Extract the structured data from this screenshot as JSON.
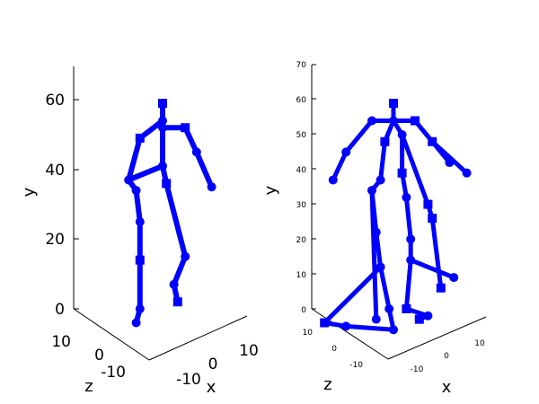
{
  "chart_data": [
    {
      "type": "3d-line",
      "title": "",
      "xlabel": "x",
      "ylabel": "y",
      "zlabel": "z",
      "series_color": "#0000ff",
      "y_ticks": [
        "0",
        "20",
        "40",
        "60"
      ],
      "x_ticks": [
        "-10",
        "0",
        "10"
      ],
      "z_ticks": [
        "-10",
        "0",
        "10"
      ],
      "joints": [
        {
          "name": "head",
          "x": 0,
          "y": 59,
          "z": 0
        },
        {
          "name": "neck",
          "x": 0,
          "y": 54,
          "z": 0
        },
        {
          "name": "chest",
          "x": 0,
          "y": 52,
          "z": 0
        },
        {
          "name": "r-shoulder",
          "x": 6,
          "y": 52,
          "z": 0
        },
        {
          "name": "r-elbow",
          "x": 9,
          "y": 45,
          "z": 0
        },
        {
          "name": "r-hand",
          "x": 13,
          "y": 35,
          "z": 0
        },
        {
          "name": "l-shoulder",
          "x": -6,
          "y": 49,
          "z": 0
        },
        {
          "name": "l-elbow",
          "x": -9,
          "y": 37,
          "z": 0
        },
        {
          "name": "pelvis",
          "x": 0,
          "y": 41,
          "z": 0
        },
        {
          "name": "r-hip",
          "x": 1,
          "y": 36,
          "z": 0
        },
        {
          "name": "r-knee",
          "x": 6,
          "y": 15,
          "z": 0
        },
        {
          "name": "r-ankle",
          "x": 3,
          "y": 7,
          "z": 0
        },
        {
          "name": "r-foot",
          "x": 4,
          "y": 2,
          "z": 0
        },
        {
          "name": "l-hip",
          "x": -7,
          "y": 34,
          "z": 0
        },
        {
          "name": "l-thigh",
          "x": -6,
          "y": 25,
          "z": 0
        },
        {
          "name": "l-knee",
          "x": -6,
          "y": 14,
          "z": 0
        },
        {
          "name": "l-ankle",
          "x": -6,
          "y": 0,
          "z": 0
        },
        {
          "name": "l-foot",
          "x": -7,
          "y": -4,
          "z": 0
        }
      ],
      "bones": [
        [
          "head",
          "neck"
        ],
        [
          "neck",
          "chest"
        ],
        [
          "chest",
          "r-shoulder"
        ],
        [
          "r-shoulder",
          "r-elbow"
        ],
        [
          "r-elbow",
          "r-hand"
        ],
        [
          "neck",
          "l-shoulder"
        ],
        [
          "l-shoulder",
          "l-elbow"
        ],
        [
          "chest",
          "pelvis"
        ],
        [
          "pelvis",
          "l-elbow"
        ],
        [
          "pelvis",
          "r-hip"
        ],
        [
          "r-hip",
          "r-knee"
        ],
        [
          "r-knee",
          "r-ankle"
        ],
        [
          "r-ankle",
          "r-foot"
        ],
        [
          "l-elbow",
          "l-hip"
        ],
        [
          "l-hip",
          "l-thigh"
        ],
        [
          "l-thigh",
          "l-knee"
        ],
        [
          "l-knee",
          "l-ankle"
        ],
        [
          "l-ankle",
          "l-foot"
        ]
      ]
    },
    {
      "type": "3d-line",
      "title": "",
      "xlabel": "x",
      "ylabel": "y",
      "zlabel": "z",
      "series_color": "#0000ff",
      "y_ticks": [
        "0",
        "10",
        "20",
        "30",
        "40",
        "50",
        "60",
        "70"
      ],
      "x_ticks": [
        "-10",
        "0",
        "10"
      ],
      "z_ticks": [
        "-10",
        "0",
        "10"
      ],
      "joints": [
        {
          "name": "head",
          "x": 0,
          "y": 59,
          "z": 0
        },
        {
          "name": "neck",
          "x": 0,
          "y": 54,
          "z": 0
        },
        {
          "name": "shoulder-l",
          "x": -5,
          "y": 54,
          "z": 0
        },
        {
          "name": "shoulder-r",
          "x": 5,
          "y": 54,
          "z": 0
        },
        {
          "name": "elbow-l",
          "x": -11,
          "y": 45,
          "z": 0
        },
        {
          "name": "hand-l",
          "x": -14,
          "y": 37,
          "z": 0
        },
        {
          "name": "elbow-r",
          "x": 9,
          "y": 48,
          "z": 0
        },
        {
          "name": "hand-r",
          "x": 13,
          "y": 42,
          "z": 0
        },
        {
          "name": "hand-r2",
          "x": 17,
          "y": 39,
          "z": 0
        },
        {
          "name": "spine-l",
          "x": -2,
          "y": 48,
          "z": 0
        },
        {
          "name": "spine-r",
          "x": 2,
          "y": 50,
          "z": 0
        },
        {
          "name": "pelvis-l",
          "x": -3,
          "y": 37,
          "z": 0
        },
        {
          "name": "pelvis-r",
          "x": 2,
          "y": 39,
          "z": 0
        },
        {
          "name": "hip-a",
          "x": -5,
          "y": 34,
          "z": 0
        },
        {
          "name": "hip-b",
          "x": 3,
          "y": 32,
          "z": 0
        },
        {
          "name": "hip-c",
          "x": 8,
          "y": 30,
          "z": 0
        },
        {
          "name": "knee-a",
          "x": -4,
          "y": 22,
          "z": 0
        },
        {
          "name": "knee-b",
          "x": 4,
          "y": 20,
          "z": 0
        },
        {
          "name": "knee-c",
          "x": 9,
          "y": 26,
          "z": 0
        },
        {
          "name": "ankle-a",
          "x": -3,
          "y": 12,
          "z": 0
        },
        {
          "name": "ankle-b",
          "x": 4,
          "y": 14,
          "z": 0
        },
        {
          "name": "ankle-c",
          "x": 11,
          "y": 6,
          "z": 0
        },
        {
          "name": "ankle-d",
          "x": 14,
          "y": 9,
          "z": 0
        },
        {
          "name": "foot-a",
          "x": -1,
          "y": 0,
          "z": 0
        },
        {
          "name": "foot-b",
          "x": 3,
          "y": 0,
          "z": 0
        },
        {
          "name": "foot-c",
          "x": -4,
          "y": -3,
          "z": 0
        },
        {
          "name": "foot-d",
          "x": 8,
          "y": -2,
          "z": 0
        },
        {
          "name": "toe-a",
          "x": -16,
          "y": -4,
          "z": 0
        },
        {
          "name": "toe-b",
          "x": -11,
          "y": -5,
          "z": 0
        },
        {
          "name": "toe-c",
          "x": 0,
          "y": -6,
          "z": 0
        },
        {
          "name": "toe-d",
          "x": 6,
          "y": -3,
          "z": 0
        }
      ],
      "bones": [
        [
          "head",
          "neck"
        ],
        [
          "neck",
          "shoulder-l"
        ],
        [
          "neck",
          "shoulder-r"
        ],
        [
          "shoulder-l",
          "elbow-l"
        ],
        [
          "elbow-l",
          "hand-l"
        ],
        [
          "shoulder-r",
          "elbow-r"
        ],
        [
          "elbow-r",
          "hand-r"
        ],
        [
          "elbow-r",
          "hand-r2"
        ],
        [
          "neck",
          "spine-l"
        ],
        [
          "neck",
          "spine-r"
        ],
        [
          "spine-l",
          "pelvis-l"
        ],
        [
          "spine-r",
          "pelvis-r"
        ],
        [
          "pelvis-l",
          "hip-a"
        ],
        [
          "pelvis-r",
          "hip-b"
        ],
        [
          "spine-r",
          "hip-c"
        ],
        [
          "hip-a",
          "knee-a"
        ],
        [
          "hip-b",
          "knee-b"
        ],
        [
          "hip-c",
          "knee-c"
        ],
        [
          "knee-a",
          "ankle-a"
        ],
        [
          "knee-b",
          "ankle-b"
        ],
        [
          "knee-c",
          "ankle-c"
        ],
        [
          "ankle-b",
          "ankle-d"
        ],
        [
          "ankle-a",
          "foot-a"
        ],
        [
          "ankle-b",
          "foot-b"
        ],
        [
          "ankle-a",
          "toe-a"
        ],
        [
          "toe-a",
          "toe-b"
        ],
        [
          "foot-a",
          "toe-c"
        ],
        [
          "foot-b",
          "foot-d"
        ],
        [
          "foot-d",
          "toe-d"
        ],
        [
          "toe-b",
          "toe-c"
        ],
        [
          "hip-a",
          "foot-c"
        ]
      ]
    }
  ]
}
